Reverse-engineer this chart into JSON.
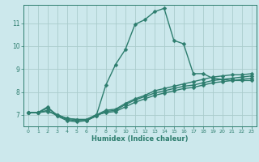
{
  "xlabel": "Humidex (Indice chaleur)",
  "bg_color": "#cce8ec",
  "grid_color": "#aacccc",
  "line_color": "#2d7d6e",
  "spine_color": "#2d7d6e",
  "tick_color": "#2d7d6e",
  "xlim": [
    -0.5,
    23.5
  ],
  "ylim": [
    6.5,
    11.8
  ],
  "xticks": [
    0,
    1,
    2,
    3,
    4,
    5,
    6,
    7,
    8,
    9,
    10,
    11,
    12,
    13,
    14,
    15,
    16,
    17,
    18,
    19,
    20,
    21,
    22,
    23
  ],
  "yticks": [
    7,
    8,
    9,
    10,
    11
  ],
  "series": [
    {
      "x": [
        0,
        1,
        2,
        3,
        4,
        5,
        6,
        7,
        8,
        9,
        10,
        11,
        12,
        13,
        14,
        15,
        16,
        17,
        18,
        19,
        20,
        21,
        22,
        23
      ],
      "y": [
        7.1,
        7.1,
        7.35,
        6.95,
        6.75,
        6.7,
        6.75,
        6.95,
        8.3,
        9.2,
        9.85,
        10.95,
        11.15,
        11.5,
        11.65,
        10.25,
        10.1,
        8.8,
        8.8,
        8.6,
        8.55,
        8.5,
        8.5,
        8.5
      ],
      "linewidth": 1.0
    },
    {
      "x": [
        0,
        1,
        2,
        3,
        4,
        5,
        6,
        7,
        8,
        9,
        10,
        11,
        12,
        13,
        14,
        15,
        16,
        17,
        18,
        19,
        20,
        21,
        22,
        23
      ],
      "y": [
        7.1,
        7.1,
        7.3,
        7.0,
        6.85,
        6.8,
        6.8,
        7.0,
        7.2,
        7.25,
        7.5,
        7.7,
        7.85,
        8.05,
        8.15,
        8.25,
        8.35,
        8.45,
        8.55,
        8.65,
        8.7,
        8.75,
        8.75,
        8.8
      ],
      "linewidth": 1.0
    },
    {
      "x": [
        0,
        1,
        2,
        3,
        4,
        5,
        6,
        7,
        8,
        9,
        10,
        11,
        12,
        13,
        14,
        15,
        16,
        17,
        18,
        19,
        20,
        21,
        22,
        23
      ],
      "y": [
        7.1,
        7.1,
        7.2,
        6.95,
        6.8,
        6.75,
        6.75,
        6.95,
        7.15,
        7.2,
        7.45,
        7.65,
        7.8,
        7.95,
        8.05,
        8.15,
        8.25,
        8.3,
        8.4,
        8.5,
        8.55,
        8.6,
        8.65,
        8.7
      ],
      "linewidth": 1.0
    },
    {
      "x": [
        0,
        1,
        2,
        3,
        4,
        5,
        6,
        7,
        8,
        9,
        10,
        11,
        12,
        13,
        14,
        15,
        16,
        17,
        18,
        19,
        20,
        21,
        22,
        23
      ],
      "y": [
        7.1,
        7.1,
        7.15,
        7.0,
        6.85,
        6.8,
        6.8,
        7.0,
        7.1,
        7.15,
        7.35,
        7.55,
        7.7,
        7.85,
        7.95,
        8.05,
        8.15,
        8.2,
        8.3,
        8.4,
        8.45,
        8.5,
        8.55,
        8.6
      ],
      "linewidth": 1.0
    }
  ]
}
